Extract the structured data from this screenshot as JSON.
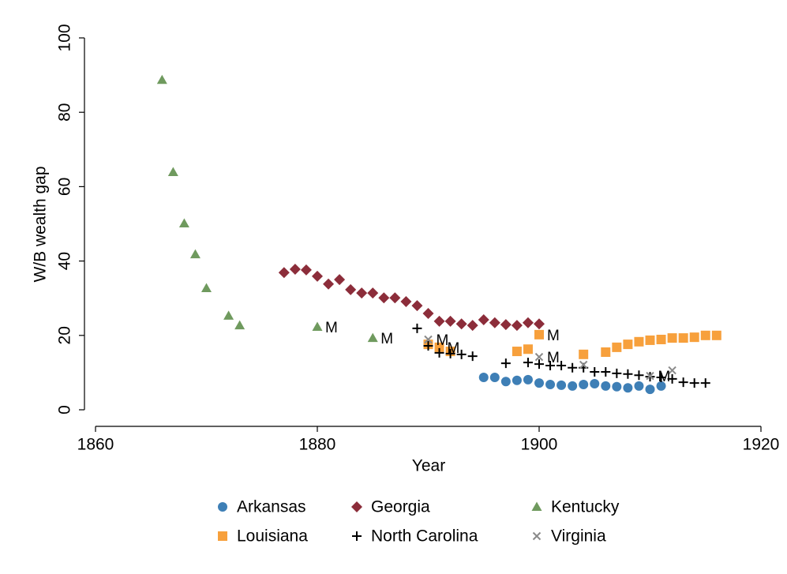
{
  "chart_data": {
    "type": "scatter",
    "xlabel": "Year",
    "ylabel": "W/B wealth gap",
    "xlim": [
      1860,
      1920
    ],
    "xticks": [
      1860,
      1880,
      1900,
      1920
    ],
    "ylim": [
      0,
      100
    ],
    "yticks": [
      0,
      20,
      40,
      60,
      80,
      100
    ],
    "grid": false,
    "legend": "bottom",
    "series": [
      {
        "name": "Arkansas",
        "color": "#3e7fb6",
        "marker": "circle",
        "x": [
          1895,
          1896,
          1897,
          1898,
          1899,
          1900,
          1901,
          1902,
          1903,
          1904,
          1905,
          1906,
          1907,
          1908,
          1909,
          1910,
          1911
        ],
        "values": [
          8.7,
          8.7,
          7.6,
          7.9,
          8.1,
          7.2,
          6.8,
          6.6,
          6.4,
          6.8,
          7.0,
          6.4,
          6.2,
          5.9,
          6.4,
          5.5,
          6.4
        ]
      },
      {
        "name": "Georgia",
        "color": "#8c2d3a",
        "marker": "diamond",
        "x": [
          1877,
          1878,
          1879,
          1880,
          1881,
          1882,
          1883,
          1884,
          1885,
          1886,
          1887,
          1888,
          1889,
          1890,
          1891,
          1892,
          1893,
          1894,
          1895,
          1896,
          1897,
          1898,
          1899,
          1900
        ],
        "values": [
          36.9,
          37.8,
          37.6,
          35.9,
          33.8,
          35.0,
          32.3,
          31.4,
          31.4,
          30.1,
          30.1,
          29.1,
          28.0,
          25.9,
          23.8,
          23.8,
          23.1,
          22.7,
          24.2,
          23.4,
          22.9,
          22.7,
          23.4,
          23.1
        ]
      },
      {
        "name": "Kentucky",
        "color": "#6f9a5e",
        "marker": "triangle",
        "x": [
          1866,
          1867,
          1868,
          1869,
          1870,
          1872,
          1873,
          1880,
          1885
        ],
        "values": [
          88.7,
          63.9,
          50.1,
          41.8,
          32.7,
          25.3,
          22.7,
          22.3,
          19.3
        ],
        "annotations": [
          {
            "x": 1880,
            "y": 22.3,
            "text": "M"
          },
          {
            "x": 1885,
            "y": 19.3,
            "text": "M"
          }
        ]
      },
      {
        "name": "Louisiana",
        "color": "#f7a03c",
        "marker": "square",
        "x": [
          1890,
          1891,
          1892,
          1898,
          1899,
          1900,
          1904,
          1906,
          1907,
          1908,
          1909,
          1910,
          1911,
          1912,
          1913,
          1914,
          1915,
          1916
        ],
        "values": [
          17.6,
          16.8,
          15.7,
          15.7,
          16.3,
          20.2,
          14.9,
          15.5,
          16.8,
          17.6,
          18.3,
          18.7,
          18.9,
          19.3,
          19.3,
          19.5,
          20.0,
          20.0
        ],
        "annotations": [
          {
            "x": 1891,
            "y": 16.8,
            "text": "M"
          },
          {
            "x": 1900,
            "y": 20.2,
            "text": "M"
          }
        ]
      },
      {
        "name": "North Carolina",
        "color": "#000000",
        "marker": "plus",
        "x": [
          1889,
          1890,
          1891,
          1892,
          1893,
          1894,
          1897,
          1899,
          1900,
          1901,
          1902,
          1903,
          1904,
          1905,
          1906,
          1907,
          1908,
          1909,
          1910,
          1911,
          1912,
          1913,
          1914,
          1915
        ],
        "values": [
          21.9,
          17.2,
          15.3,
          15.1,
          14.9,
          14.4,
          12.5,
          12.7,
          12.3,
          11.9,
          11.9,
          11.3,
          11.3,
          10.2,
          10.2,
          9.8,
          9.6,
          9.3,
          8.9,
          8.7,
          8.3,
          7.4,
          7.2,
          7.2
        ]
      },
      {
        "name": "Virginia",
        "color": "#8a8a8a",
        "marker": "x",
        "x": [
          1890,
          1900,
          1904,
          1910,
          1912
        ],
        "values": [
          18.9,
          14.2,
          12.1,
          9.1,
          10.6
        ],
        "annotations": [
          {
            "x": 1890,
            "y": 18.9,
            "text": "M"
          },
          {
            "x": 1900,
            "y": 14.2,
            "text": "M"
          },
          {
            "x": 1910,
            "y": 9.1,
            "text": "M"
          }
        ]
      }
    ]
  }
}
